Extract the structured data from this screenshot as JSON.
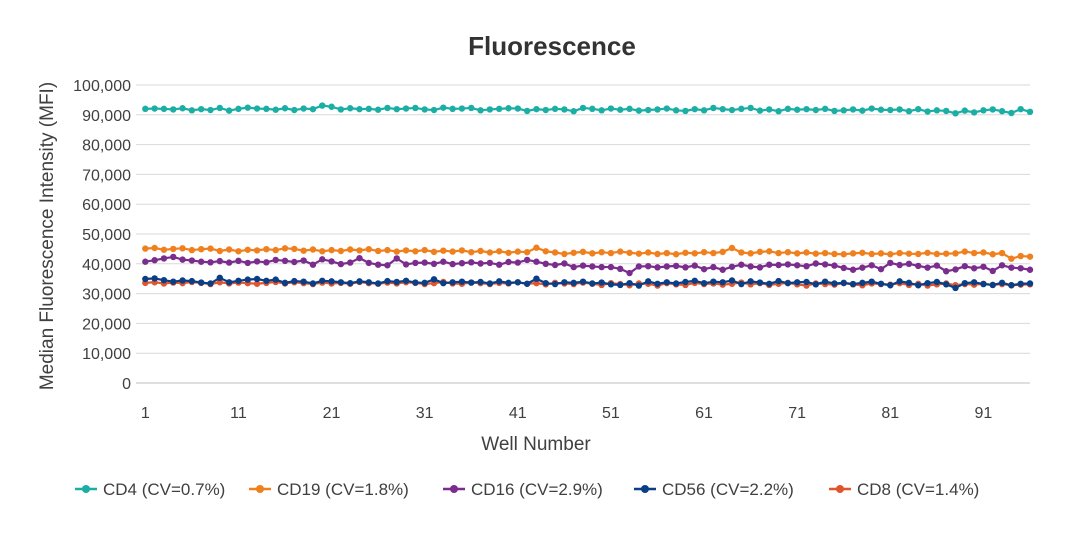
{
  "chart_data": {
    "type": "line",
    "title": "Fluorescence",
    "xlabel": "Well Number",
    "ylabel": "Median Fluorescence Intensity (MFI)",
    "ylim": [
      0,
      100000
    ],
    "xlim": [
      0,
      96
    ],
    "yticks": [
      0,
      10000,
      20000,
      30000,
      40000,
      50000,
      60000,
      70000,
      80000,
      90000,
      100000
    ],
    "ytick_labels": [
      "0",
      "10,000",
      "20,000",
      "30,000",
      "40,000",
      "50,000",
      "60,000",
      "70,000",
      "80,000",
      "90,000",
      "100,000"
    ],
    "xticks": [
      1,
      11,
      21,
      31,
      41,
      51,
      61,
      71,
      81,
      91
    ],
    "xtick_labels": [
      "1",
      "11",
      "21",
      "31",
      "41",
      "51",
      "61",
      "71",
      "81",
      "91"
    ],
    "grid": true,
    "legend_position": "bottom",
    "x": [
      1,
      2,
      3,
      4,
      5,
      6,
      7,
      8,
      9,
      10,
      11,
      12,
      13,
      14,
      15,
      16,
      17,
      18,
      19,
      20,
      21,
      22,
      23,
      24,
      25,
      26,
      27,
      28,
      29,
      30,
      31,
      32,
      33,
      34,
      35,
      36,
      37,
      38,
      39,
      40,
      41,
      42,
      43,
      44,
      45,
      46,
      47,
      48,
      49,
      50,
      51,
      52,
      53,
      54,
      55,
      56,
      57,
      58,
      59,
      60,
      61,
      62,
      63,
      64,
      65,
      66,
      67,
      68,
      69,
      70,
      71,
      72,
      73,
      74,
      75,
      76,
      77,
      78,
      79,
      80,
      81,
      82,
      83,
      84,
      85,
      86,
      87,
      88,
      89,
      90,
      91,
      92,
      93,
      94,
      95,
      96
    ],
    "series": [
      {
        "name": "CD4 (CV=0.7%)",
        "color": "#1aaea5",
        "values": [
          92000,
          92100,
          92000,
          91800,
          92200,
          91500,
          91900,
          91600,
          92300,
          91400,
          92000,
          92400,
          92100,
          92000,
          91700,
          92200,
          91600,
          92100,
          91900,
          93100,
          92700,
          91800,
          92200,
          91900,
          92000,
          91700,
          92300,
          91900,
          92100,
          92300,
          91800,
          91600,
          92400,
          92000,
          92100,
          92300,
          91500,
          91800,
          92000,
          92200,
          92100,
          91300,
          91900,
          91600,
          92000,
          91800,
          91200,
          92300,
          92000,
          91500,
          92100,
          91700,
          92000,
          91400,
          91600,
          91800,
          92100,
          91500,
          91300,
          91900,
          91500,
          92300,
          91900,
          91600,
          92000,
          92300,
          91400,
          91800,
          91200,
          92000,
          91700,
          91900,
          91600,
          92000,
          91300,
          91500,
          91800,
          91400,
          92100,
          91700,
          91600,
          91800,
          91200,
          91900,
          91100,
          91500,
          91300,
          90500,
          91400,
          90800,
          91500,
          91800,
          91200,
          90600,
          91900,
          91000
        ]
      },
      {
        "name": "CD19 (CV=1.8%)",
        "color": "#f0801e",
        "values": [
          45100,
          45300,
          44700,
          45000,
          45200,
          44600,
          44900,
          45100,
          44300,
          44800,
          44200,
          44700,
          44500,
          44900,
          44600,
          45200,
          45000,
          44400,
          44800,
          44200,
          44600,
          44300,
          44800,
          44500,
          44900,
          44300,
          44600,
          44100,
          44500,
          44200,
          44600,
          44000,
          44400,
          44100,
          44500,
          43900,
          44300,
          43800,
          44200,
          43700,
          44100,
          43900,
          45400,
          44200,
          43800,
          43300,
          43700,
          44000,
          43500,
          43900,
          43600,
          44100,
          43700,
          43400,
          43800,
          43300,
          43600,
          43200,
          43700,
          43500,
          43900,
          43600,
          44000,
          45300,
          43800,
          43500,
          44000,
          44200,
          43600,
          43900,
          43500,
          43800,
          43400,
          43600,
          43300,
          43200,
          43500,
          43700,
          43300,
          43500,
          43200,
          43600,
          43400,
          43300,
          43700,
          43300,
          43400,
          43500,
          44100,
          43600,
          43800,
          43200,
          43600,
          41700,
          42600,
          42400
        ]
      },
      {
        "name": "CD16 (CV=2.9%)",
        "color": "#7b2d8e",
        "values": [
          40700,
          41200,
          41800,
          42300,
          41400,
          41100,
          40700,
          40500,
          40900,
          40400,
          41000,
          40300,
          40800,
          40500,
          41300,
          41000,
          40600,
          41100,
          39700,
          41500,
          40800,
          39900,
          40400,
          41900,
          40300,
          39700,
          39500,
          41800,
          39800,
          40300,
          40400,
          40000,
          40700,
          39900,
          40200,
          40500,
          40100,
          40300,
          39700,
          40600,
          40400,
          41300,
          40700,
          40000,
          39600,
          40100,
          38900,
          39400,
          39100,
          38900,
          38900,
          38300,
          36900,
          39100,
          39200,
          38800,
          39100,
          39300,
          38800,
          39400,
          38200,
          38900,
          38000,
          39000,
          39700,
          39100,
          38800,
          39700,
          39600,
          39800,
          39500,
          39200,
          40100,
          39800,
          39400,
          38600,
          38000,
          38700,
          39500,
          38200,
          40300,
          39600,
          40000,
          39300,
          38700,
          39400,
          37500,
          38100,
          39200,
          38500,
          39000,
          37600,
          39500,
          38700,
          38500,
          38000
        ]
      },
      {
        "name": "CD56 (CV=2.2%)",
        "color": "#0a3f86",
        "values": [
          34900,
          35100,
          34500,
          34000,
          34400,
          34200,
          33700,
          33400,
          35300,
          33800,
          34300,
          34700,
          34900,
          34300,
          34700,
          33600,
          34200,
          34000,
          33400,
          34300,
          34100,
          33800,
          33500,
          34100,
          33800,
          33400,
          34200,
          33900,
          34300,
          33700,
          33600,
          34800,
          33500,
          33800,
          34000,
          33700,
          33900,
          33400,
          34100,
          33600,
          33800,
          33300,
          35000,
          33500,
          33200,
          33800,
          33600,
          34000,
          33400,
          33700,
          33100,
          32900,
          33500,
          32700,
          34100,
          33300,
          33800,
          33400,
          33900,
          34300,
          33500,
          34000,
          33800,
          34400,
          33200,
          34100,
          33700,
          33300,
          34200,
          33500,
          33800,
          33900,
          33100,
          34000,
          33400,
          33600,
          33200,
          33600,
          34000,
          33300,
          32800,
          34100,
          33600,
          32800,
          33500,
          33900,
          33100,
          31900,
          33500,
          33800,
          33200,
          32900,
          33600,
          32800,
          33300,
          33400
        ]
      },
      {
        "name": "CD8 (CV=1.4%)",
        "color": "#e0552e",
        "values": [
          33600,
          33800,
          33400,
          33700,
          33500,
          33900,
          33600,
          33200,
          33800,
          33400,
          33700,
          33500,
          33300,
          33600,
          33900,
          33400,
          33800,
          33500,
          33200,
          33700,
          33400,
          33600,
          33300,
          33900,
          33500,
          33300,
          33700,
          33400,
          33800,
          33600,
          33200,
          33500,
          33900,
          33400,
          33300,
          33700,
          33500,
          33200,
          33600,
          33400,
          33800,
          33300,
          33500,
          33100,
          33600,
          33400,
          33200,
          33700,
          33300,
          32900,
          33500,
          33200,
          32800,
          33400,
          33300,
          32700,
          33500,
          33100,
          32900,
          33600,
          33200,
          33400,
          33000,
          33300,
          33700,
          33100,
          33500,
          32900,
          33300,
          33600,
          33100,
          32700,
          33400,
          33200,
          33000,
          33500,
          33100,
          32800,
          33400,
          33200,
          33000,
          33500,
          32900,
          33300,
          32700,
          33100,
          33400,
          32800,
          33200,
          33000,
          33300,
          32900,
          33200,
          32800,
          33000,
          33100
        ]
      }
    ]
  }
}
